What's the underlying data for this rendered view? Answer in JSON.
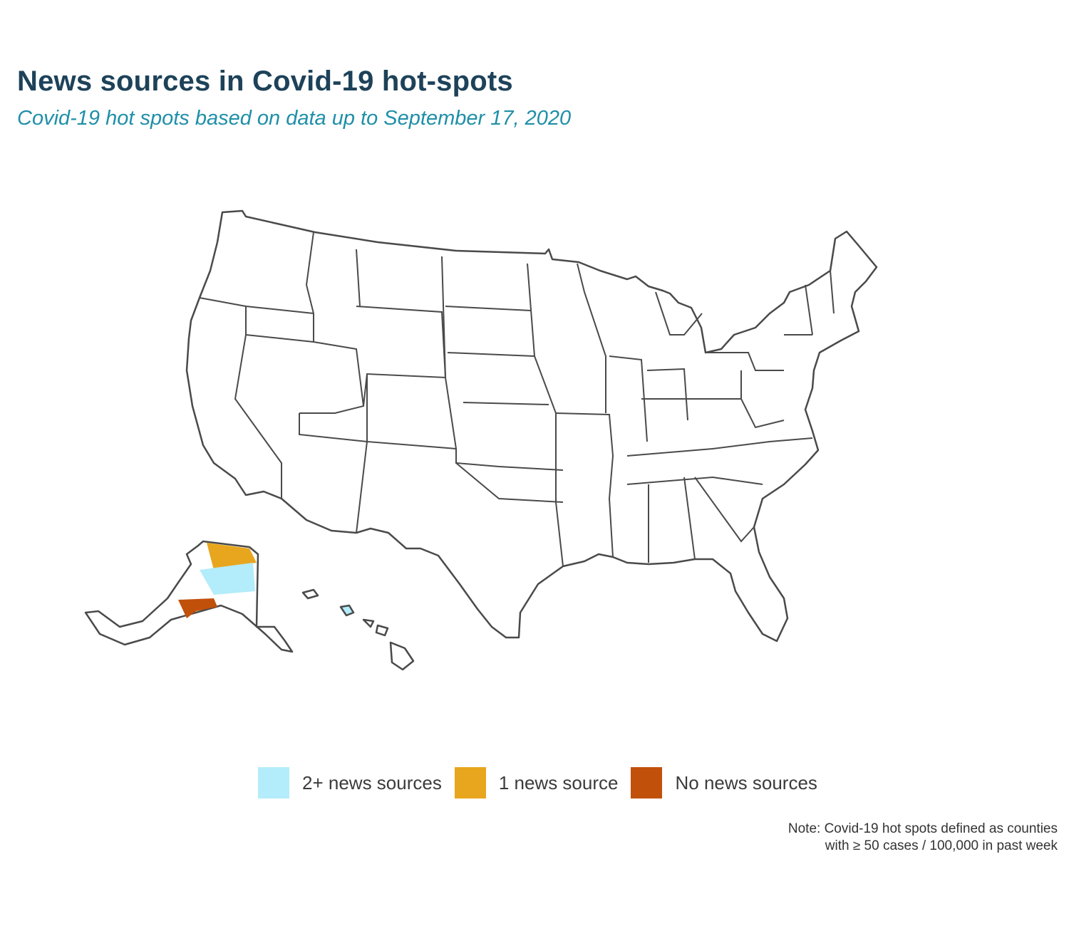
{
  "title": "News sources in Covid-19 hot-spots",
  "subtitle": "Covid-19 hot spots based on data up to September 17, 2020",
  "legend": [
    {
      "label": "2+ news sources",
      "color": "#b3ecfa"
    },
    {
      "label": "1 news source",
      "color": "#e8a61e"
    },
    {
      "label": "No news sources",
      "color": "#c1500a"
    }
  ],
  "note": {
    "line1": "Note: Covid-19 hot spots defined as counties",
    "line2": "with ≥ 50 cases / 100,000 in past week"
  },
  "colors": {
    "border": "#4a4a4a",
    "county_border": "#9a9a9a",
    "title": "#1d4259",
    "subtitle": "#1f8fa8"
  }
}
